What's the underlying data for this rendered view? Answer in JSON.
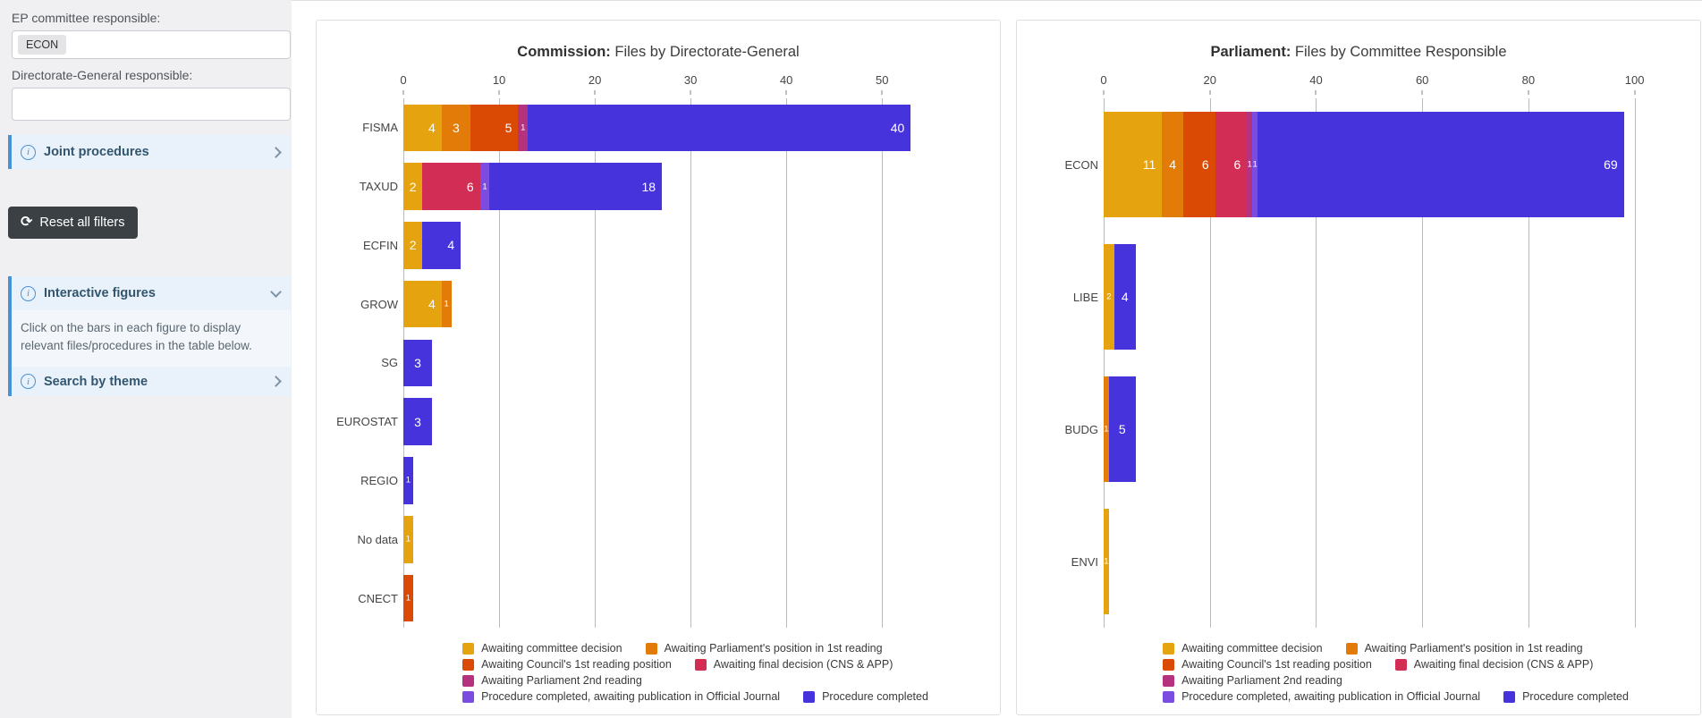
{
  "sidebar": {
    "ep_committee_label": "EP committee responsible:",
    "ep_committee_value": "ECON",
    "dg_label": "Directorate-General responsible:",
    "dg_value": "",
    "joint_procedures_label": "Joint procedures",
    "reset_button_label": "Reset all filters",
    "reset_icon": "⟳",
    "interactive_figures_label": "Interactive figures",
    "interactive_figures_text": "Click on the bars in each figure to display relevant files/procedures in the table below.",
    "search_by_theme_label": "Search by theme"
  },
  "colors": {
    "accent_blue": "#4A90D9",
    "sidebar_panel_bg": "#E9F1FA",
    "reset_button_bg": "#3B4045",
    "gridline": "#BBBBBB"
  },
  "chart_data": [
    {
      "type": "bar",
      "orientation": "horizontal",
      "stacked": true,
      "title_bold": "Commission:",
      "title_rest": " Files by Directorate-General",
      "categories": [
        "FISMA",
        "TAXUD",
        "ECFIN",
        "GROW",
        "SG",
        "EUROSTAT",
        "REGIO",
        "No data",
        "CNECT"
      ],
      "x_ticks": [
        0,
        10,
        20,
        30,
        40,
        50
      ],
      "x_max": 61,
      "grid": true,
      "legend_position": "bottom",
      "legend_rows": [
        [
          0,
          1
        ],
        [
          2,
          3
        ],
        [
          4
        ],
        [
          5,
          6
        ]
      ],
      "series": [
        {
          "name": "Awaiting committee decision",
          "color": "#E5A40F",
          "values": [
            4,
            2,
            2,
            4,
            0,
            0,
            0,
            1,
            0
          ]
        },
        {
          "name": "Awaiting Parliament's position in 1st reading",
          "color": "#E37B09",
          "values": [
            3,
            0,
            0,
            1,
            0,
            0,
            0,
            0,
            0
          ]
        },
        {
          "name": "Awaiting Council's 1st reading position",
          "color": "#DB4A05",
          "values": [
            5,
            0,
            0,
            0,
            0,
            0,
            0,
            0,
            1
          ]
        },
        {
          "name": "Awaiting final decision (CNS & APP)",
          "color": "#D22E55",
          "values": [
            0,
            6,
            0,
            0,
            0,
            0,
            0,
            0,
            0
          ]
        },
        {
          "name": "Awaiting Parliament 2nd reading",
          "color": "#B5327E",
          "values": [
            1,
            0,
            0,
            0,
            0,
            0,
            0,
            0,
            0
          ]
        },
        {
          "name": "Procedure completed, awaiting publication in Official Journal",
          "color": "#7A4CDF",
          "values": [
            0,
            1,
            0,
            0,
            0,
            0,
            0,
            0,
            0
          ]
        },
        {
          "name": "Procedure completed",
          "color": "#4633DC",
          "values": [
            40,
            18,
            4,
            0,
            3,
            3,
            1,
            0,
            0
          ]
        }
      ]
    },
    {
      "type": "bar",
      "orientation": "horizontal",
      "stacked": true,
      "title_bold": "Parliament:",
      "title_rest": " Files by Committee Responsible",
      "categories": [
        "ECON",
        "LIBE",
        "BUDG",
        "ENVI"
      ],
      "x_ticks": [
        0,
        20,
        40,
        60,
        80,
        100
      ],
      "x_max": 110,
      "grid": true,
      "legend_position": "bottom",
      "legend_rows": [
        [
          0,
          1
        ],
        [
          2,
          3
        ],
        [
          4
        ],
        [
          5,
          6
        ]
      ],
      "series": [
        {
          "name": "Awaiting committee decision",
          "color": "#E5A40F",
          "values": [
            11,
            2,
            0,
            1
          ]
        },
        {
          "name": "Awaiting Parliament's position in 1st reading",
          "color": "#E37B09",
          "values": [
            4,
            0,
            1,
            0
          ]
        },
        {
          "name": "Awaiting Council's 1st reading position",
          "color": "#DB4A05",
          "values": [
            6,
            0,
            0,
            0
          ]
        },
        {
          "name": "Awaiting final decision (CNS & APP)",
          "color": "#D22E55",
          "values": [
            6,
            0,
            0,
            0
          ]
        },
        {
          "name": "Awaiting Parliament 2nd reading",
          "color": "#B5327E",
          "values": [
            1,
            0,
            0,
            0
          ]
        },
        {
          "name": "Procedure completed, awaiting publication in Official Journal",
          "color": "#7A4CDF",
          "values": [
            1,
            0,
            0,
            0
          ]
        },
        {
          "name": "Procedure completed",
          "color": "#4633DC",
          "values": [
            69,
            4,
            5,
            0
          ]
        }
      ]
    }
  ]
}
